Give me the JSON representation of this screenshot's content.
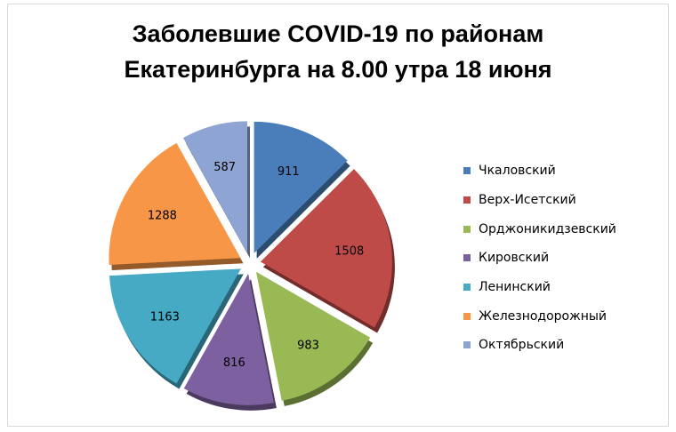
{
  "chart_data": {
    "type": "pie",
    "title": "Заболевшие COVID-19 по районам Екатеринбурга на 8.00 утра 18 июня",
    "title_lines": [
      "Заболевшие COVID-19 по районам",
      "Екатеринбурга на 8.00 утра 18 июня"
    ],
    "categories": [
      "Чкаловский",
      "Верх-Исетский",
      "Орджоникидзевский",
      "Кировский",
      "Ленинский",
      "Железнодорожный",
      "Октябрьский"
    ],
    "values": [
      911,
      1508,
      983,
      816,
      1163,
      1288,
      587
    ],
    "colors": [
      "#4a7ebb",
      "#be4b48",
      "#98b954",
      "#7d60a0",
      "#46aac5",
      "#f79646",
      "#8ea4d2"
    ],
    "legend_position": "right",
    "exploded": true
  }
}
